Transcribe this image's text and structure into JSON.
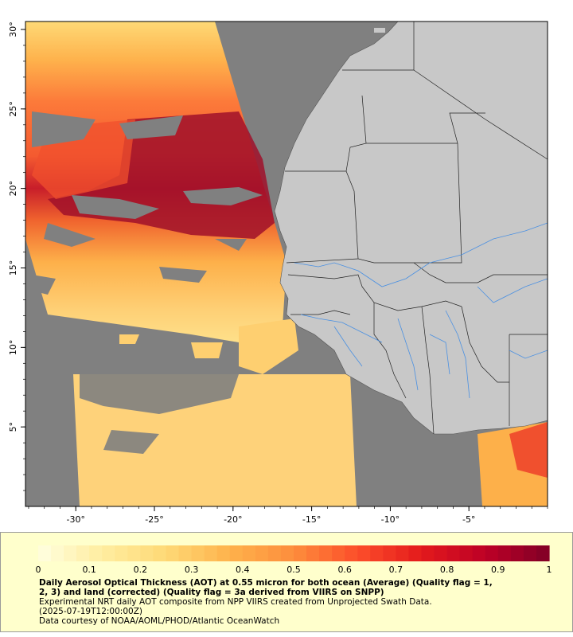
{
  "map": {
    "lon_ticks": [
      "-30°",
      "-25°",
      "-20°",
      "-15°",
      "-10°",
      "-5°"
    ],
    "lat_ticks": [
      "5°",
      "10°",
      "15°",
      "20°",
      "25°",
      "30°"
    ],
    "lon_values": [
      -30,
      -25,
      -20,
      -15,
      -10,
      -5
    ],
    "lat_values": [
      5,
      10,
      15,
      20,
      25,
      30
    ],
    "lon_range": [
      -33.2,
      0
    ],
    "lat_range": [
      0,
      30.5
    ],
    "colors": {
      "ocean_nodata": "#808080",
      "land": "#c8c8c8",
      "rivers": "#4a90e2",
      "borders": "#222222"
    }
  },
  "legend": {
    "ticks": [
      "0",
      "0.1",
      "0.2",
      "0.3",
      "0.4",
      "0.5",
      "0.6",
      "0.7",
      "0.8",
      "0.9",
      "1"
    ],
    "tick_values": [
      0,
      0.1,
      0.2,
      0.3,
      0.4,
      0.5,
      0.6,
      0.7,
      0.8,
      0.9,
      1
    ],
    "range": [
      0,
      1
    ],
    "colors": [
      "#ffffe0",
      "#ffeda0",
      "#fed976",
      "#feb24c",
      "#fd8d3c",
      "#fc4e2a",
      "#e31a1c",
      "#bd0026",
      "#800026"
    ]
  },
  "caption": {
    "line1": "Daily Aerosol Optical Thickness (AOT) at 0.55 micron for both ocean (Average) (Quality flag = 1,",
    "line2": "2, 3) and land (corrected) (Quality flag = 3a derived from VIIRS on SNPP)",
    "line3": "Experimental NRT daily AOT composite from NPP VIIRS created from Unprojected Swath Data.",
    "line4": "(2025-07-19T12:00:00Z)",
    "line5": "Data courtesy of NOAA/AOML/PHOD/Atlantic OceanWatch"
  }
}
